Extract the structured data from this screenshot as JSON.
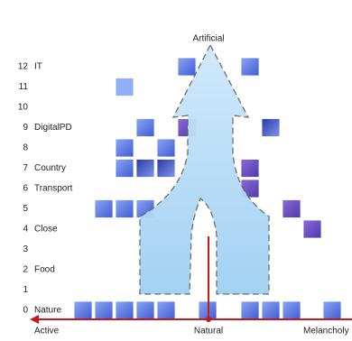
{
  "axis_labels": {
    "top": "Artificial",
    "left": "Active",
    "center": "Natural",
    "right": "Melancholy"
  },
  "rows": [
    {
      "number": "12",
      "label": "IT"
    },
    {
      "number": "11",
      "label": ""
    },
    {
      "number": "10",
      "label": ""
    },
    {
      "number": "9",
      "label": "DigitalPD"
    },
    {
      "number": "8",
      "label": ""
    },
    {
      "number": "7",
      "label": "Country"
    },
    {
      "number": "6",
      "label": "Transport"
    },
    {
      "number": "5",
      "label": ""
    },
    {
      "number": "4",
      "label": "Close"
    },
    {
      "number": "3",
      "label": ""
    },
    {
      "number": "2",
      "label": "Food"
    },
    {
      "number": "1",
      "label": ""
    },
    {
      "number": "0",
      "label": "Nature"
    }
  ]
}
